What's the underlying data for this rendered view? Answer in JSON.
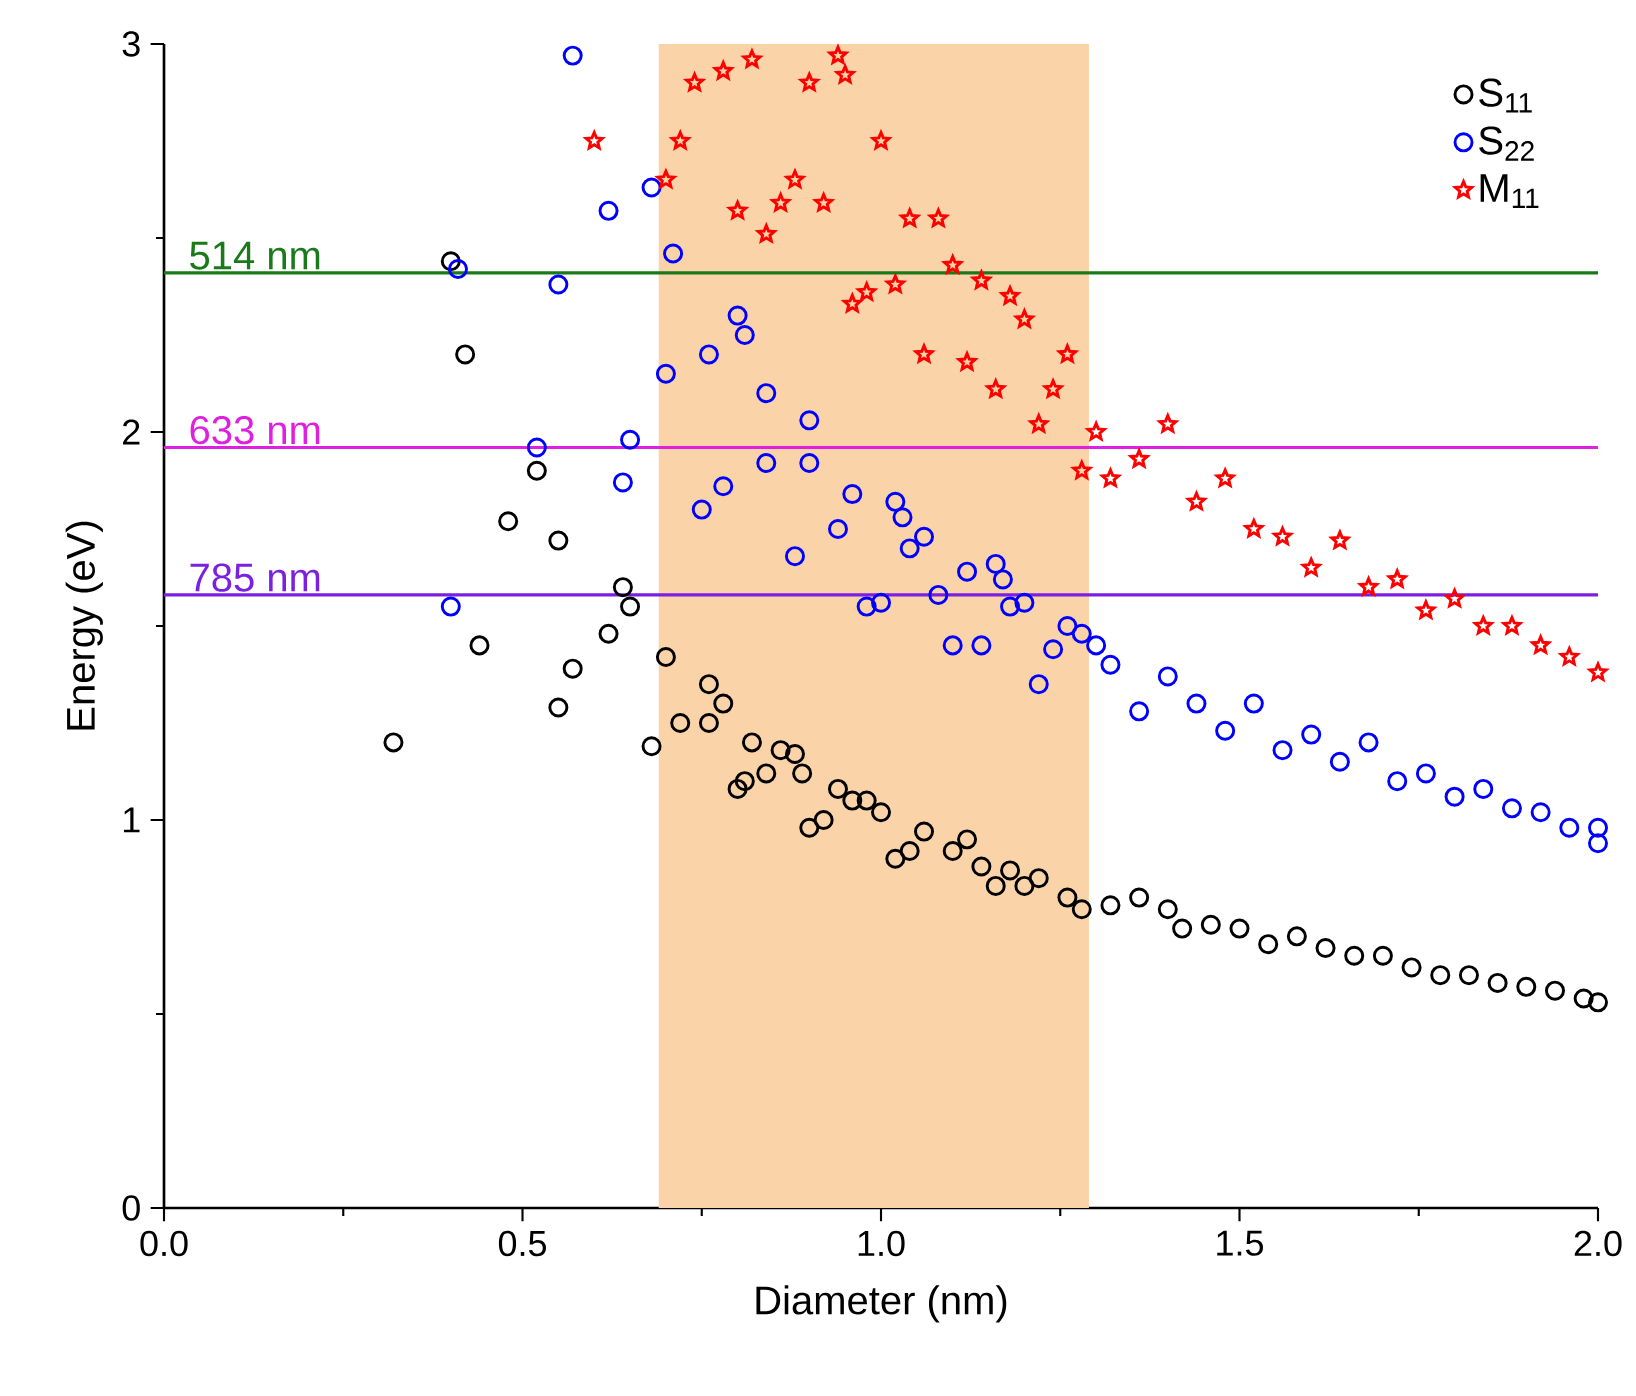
{
  "chart_data": {
    "type": "scatter",
    "xlabel": "Diameter (nm)",
    "ylabel": "Energy (eV)",
    "xlim": [
      0,
      2
    ],
    "ylim": [
      0,
      3
    ],
    "xticks": [
      {
        "value": 0,
        "label": "0.0"
      },
      {
        "value": 0.5,
        "label": "0.5"
      },
      {
        "value": 1,
        "label": "1.0"
      },
      {
        "value": 1.5,
        "label": "1.5"
      },
      {
        "value": 2,
        "label": "2.0"
      }
    ],
    "yticks": [
      0,
      1,
      2,
      3
    ],
    "grid": false,
    "legend": "top right",
    "bands": [
      {
        "axis": "x",
        "from": 0.69,
        "to": 1.29,
        "color": "#fad3a8"
      }
    ],
    "ref_lines": [
      {
        "axis": "y",
        "value": 2.41,
        "label": "514 nm",
        "color": "#1a7a1a"
      },
      {
        "axis": "y",
        "value": 1.96,
        "label": "633 nm",
        "color": "#e020e0"
      },
      {
        "axis": "y",
        "value": 1.58,
        "label": "785 nm",
        "color": "#7a20e0"
      }
    ],
    "series": [
      {
        "name": "S$_{11}$",
        "color": "#000000",
        "marker": "circle",
        "x": [
          0.32,
          0.4,
          0.42,
          0.44,
          0.48,
          0.52,
          0.55,
          0.55,
          0.57,
          0.62,
          0.64,
          0.65,
          0.68,
          0.7,
          0.72,
          0.76,
          0.76,
          0.78,
          0.8,
          0.81,
          0.82,
          0.84,
          0.86,
          0.88,
          0.89,
          0.9,
          0.92,
          0.94,
          0.96,
          0.98,
          1.0,
          1.02,
          1.04,
          1.06,
          1.1,
          1.12,
          1.14,
          1.16,
          1.18,
          1.2,
          1.22,
          1.26,
          1.28,
          1.32,
          1.36,
          1.4,
          1.42,
          1.46,
          1.5,
          1.54,
          1.58,
          1.62,
          1.66,
          1.7,
          1.74,
          1.78,
          1.82,
          1.86,
          1.9,
          1.94,
          1.98,
          2.0
        ],
        "values": [
          1.2,
          2.44,
          2.2,
          1.45,
          1.77,
          1.9,
          1.72,
          1.29,
          1.39,
          1.48,
          1.6,
          1.55,
          1.19,
          1.42,
          1.25,
          1.35,
          1.25,
          1.3,
          1.08,
          1.1,
          1.2,
          1.12,
          1.18,
          1.17,
          1.12,
          0.98,
          1.0,
          1.08,
          1.05,
          1.05,
          1.02,
          0.9,
          0.92,
          0.97,
          0.92,
          0.95,
          0.88,
          0.83,
          0.87,
          0.83,
          0.85,
          0.8,
          0.77,
          0.78,
          0.8,
          0.77,
          0.72,
          0.73,
          0.72,
          0.68,
          0.7,
          0.67,
          0.65,
          0.65,
          0.62,
          0.6,
          0.6,
          0.58,
          0.57,
          0.56,
          0.54,
          0.53
        ]
      },
      {
        "name": "S$_{22}$",
        "color": "#0000ff",
        "marker": "circle",
        "x": [
          0.4,
          0.41,
          0.52,
          0.55,
          0.57,
          0.62,
          0.64,
          0.65,
          0.68,
          0.7,
          0.71,
          0.75,
          0.76,
          0.78,
          0.8,
          0.81,
          0.84,
          0.84,
          0.88,
          0.9,
          0.9,
          0.94,
          0.96,
          0.98,
          1.0,
          1.02,
          1.03,
          1.04,
          1.06,
          1.08,
          1.1,
          1.12,
          1.14,
          1.16,
          1.17,
          1.18,
          1.2,
          1.22,
          1.24,
          1.26,
          1.28,
          1.3,
          1.32,
          1.36,
          1.4,
          1.44,
          1.48,
          1.52,
          1.56,
          1.6,
          1.64,
          1.68,
          1.72,
          1.76,
          1.8,
          1.84,
          1.88,
          1.92,
          1.96,
          2.0,
          2.0
        ],
        "values": [
          1.55,
          2.42,
          1.96,
          2.38,
          2.97,
          2.57,
          1.87,
          1.98,
          2.63,
          2.15,
          2.46,
          1.8,
          2.2,
          1.86,
          2.3,
          2.25,
          2.1,
          1.92,
          1.68,
          1.92,
          2.03,
          1.75,
          1.84,
          1.55,
          1.56,
          1.82,
          1.78,
          1.7,
          1.73,
          1.58,
          1.45,
          1.64,
          1.45,
          1.66,
          1.62,
          1.55,
          1.56,
          1.35,
          1.44,
          1.5,
          1.48,
          1.45,
          1.4,
          1.28,
          1.37,
          1.3,
          1.23,
          1.3,
          1.18,
          1.22,
          1.15,
          1.2,
          1.1,
          1.12,
          1.06,
          1.08,
          1.03,
          1.02,
          0.98,
          0.98,
          0.94
        ]
      },
      {
        "name": "M$_{11}$",
        "color": "#ff0000",
        "marker": "star",
        "x": [
          0.6,
          0.7,
          0.72,
          0.74,
          0.78,
          0.8,
          0.82,
          0.84,
          0.86,
          0.88,
          0.9,
          0.92,
          0.94,
          0.95,
          0.96,
          0.98,
          1.0,
          1.02,
          1.04,
          1.06,
          1.08,
          1.1,
          1.12,
          1.14,
          1.16,
          1.18,
          1.2,
          1.22,
          1.24,
          1.26,
          1.28,
          1.3,
          1.32,
          1.36,
          1.4,
          1.44,
          1.48,
          1.52,
          1.56,
          1.6,
          1.64,
          1.68,
          1.72,
          1.76,
          1.8,
          1.84,
          1.88,
          1.92,
          1.96,
          2.0
        ],
        "values": [
          2.75,
          2.65,
          2.75,
          2.9,
          2.93,
          2.57,
          2.96,
          2.51,
          2.59,
          2.65,
          2.9,
          2.59,
          2.97,
          2.92,
          2.33,
          2.36,
          2.75,
          2.38,
          2.55,
          2.2,
          2.55,
          2.43,
          2.18,
          2.39,
          2.11,
          2.35,
          2.29,
          2.02,
          2.11,
          2.2,
          1.9,
          2.0,
          1.88,
          1.93,
          2.02,
          1.82,
          1.88,
          1.75,
          1.73,
          1.65,
          1.72,
          1.6,
          1.62,
          1.54,
          1.57,
          1.5,
          1.5,
          1.45,
          1.42,
          1.38
        ]
      }
    ]
  }
}
